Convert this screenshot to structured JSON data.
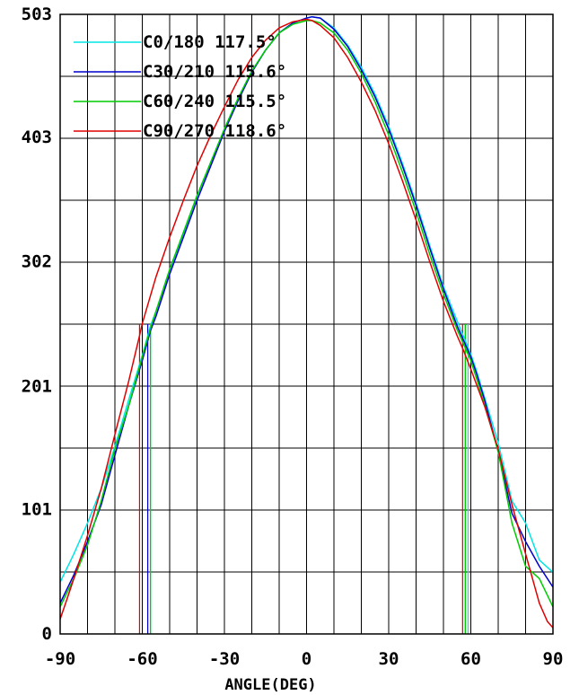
{
  "chart_data": {
    "type": "line",
    "xlabel": "ANGLE(DEG)",
    "ylabel": "",
    "xlim": [
      -90,
      90
    ],
    "ylim": [
      0,
      503
    ],
    "x_ticks": [
      -90,
      -60,
      -30,
      0,
      30,
      60,
      90
    ],
    "y_ticks": [
      0,
      101,
      201,
      302,
      403,
      503
    ],
    "y_tick_labels": [
      "0",
      "101",
      "201",
      "302",
      "403",
      "503"
    ],
    "grid": true,
    "legend_position": "top-left",
    "series": [
      {
        "name": "C0/180 117.5°",
        "color": "#00e5e5",
        "beam_edges": [
          -57,
          59
        ],
        "x": [
          -90,
          -85,
          -80,
          -75,
          -70,
          -65,
          -60,
          -57,
          -55,
          -50,
          -45,
          -40,
          -35,
          -30,
          -25,
          -20,
          -15,
          -10,
          -5,
          0,
          2,
          5,
          10,
          15,
          20,
          25,
          30,
          35,
          40,
          45,
          50,
          55,
          58,
          60,
          62,
          65,
          70,
          75,
          80,
          85,
          90
        ],
        "y": [
          42,
          65,
          90,
          118,
          152,
          190,
          226,
          250,
          262,
          295,
          325,
          355,
          383,
          410,
          435,
          457,
          474,
          488,
          496,
          500,
          501,
          500,
          492,
          478,
          460,
          438,
          412,
          382,
          350,
          315,
          282,
          254,
          238,
          227,
          214,
          192,
          155,
          108,
          90,
          60,
          50
        ]
      },
      {
        "name": "C30/210 115.6°",
        "color": "#0000cc",
        "beam_edges": [
          -58,
          58
        ],
        "x": [
          -90,
          -85,
          -80,
          -75,
          -70,
          -65,
          -60,
          -57,
          -55,
          -50,
          -45,
          -40,
          -35,
          -30,
          -25,
          -20,
          -15,
          -10,
          -5,
          0,
          2,
          5,
          10,
          15,
          20,
          25,
          30,
          35,
          40,
          45,
          50,
          55,
          58,
          60,
          62,
          65,
          70,
          75,
          80,
          85,
          90
        ],
        "y": [
          25,
          48,
          75,
          105,
          145,
          185,
          222,
          246,
          258,
          292,
          322,
          352,
          380,
          408,
          433,
          456,
          474,
          488,
          496,
          500,
          501,
          500,
          491,
          477,
          458,
          436,
          410,
          380,
          348,
          313,
          280,
          250,
          235,
          225,
          212,
          190,
          148,
          98,
          75,
          55,
          38
        ]
      },
      {
        "name": "C60/240 115.5°",
        "color": "#00cc00",
        "beam_edges": [
          -57,
          58
        ],
        "x": [
          -90,
          -85,
          -80,
          -75,
          -70,
          -65,
          -60,
          -57,
          -55,
          -50,
          -45,
          -40,
          -35,
          -30,
          -25,
          -20,
          -15,
          -10,
          -5,
          0,
          2,
          5,
          10,
          15,
          20,
          25,
          30,
          35,
          40,
          45,
          50,
          55,
          58,
          60,
          62,
          65,
          70,
          75,
          80,
          85,
          90
        ],
        "y": [
          22,
          45,
          72,
          108,
          150,
          185,
          225,
          248,
          262,
          296,
          326,
          356,
          383,
          410,
          435,
          457,
          474,
          488,
          495,
          498,
          498,
          496,
          488,
          474,
          455,
          432,
          405,
          375,
          343,
          308,
          276,
          247,
          232,
          222,
          208,
          186,
          148,
          90,
          55,
          45,
          22
        ]
      },
      {
        "name": "C90/270 118.6°",
        "color": "#e00000",
        "beam_edges": [
          -61,
          57
        ],
        "x": [
          -90,
          -88,
          -85,
          -80,
          -75,
          -70,
          -65,
          -61,
          -60,
          -55,
          -50,
          -45,
          -40,
          -35,
          -30,
          -25,
          -20,
          -15,
          -10,
          -5,
          0,
          2,
          5,
          10,
          15,
          20,
          25,
          30,
          35,
          40,
          45,
          50,
          55,
          57,
          60,
          65,
          70,
          75,
          80,
          85,
          88,
          90
        ],
        "y": [
          12,
          25,
          45,
          80,
          118,
          162,
          205,
          242,
          252,
          290,
          322,
          352,
          380,
          405,
          428,
          450,
          468,
          482,
          492,
          497,
          499,
          498,
          494,
          484,
          468,
          448,
          425,
          398,
          368,
          336,
          302,
          270,
          242,
          232,
          215,
          185,
          150,
          105,
          65,
          25,
          10,
          5
        ]
      }
    ]
  }
}
